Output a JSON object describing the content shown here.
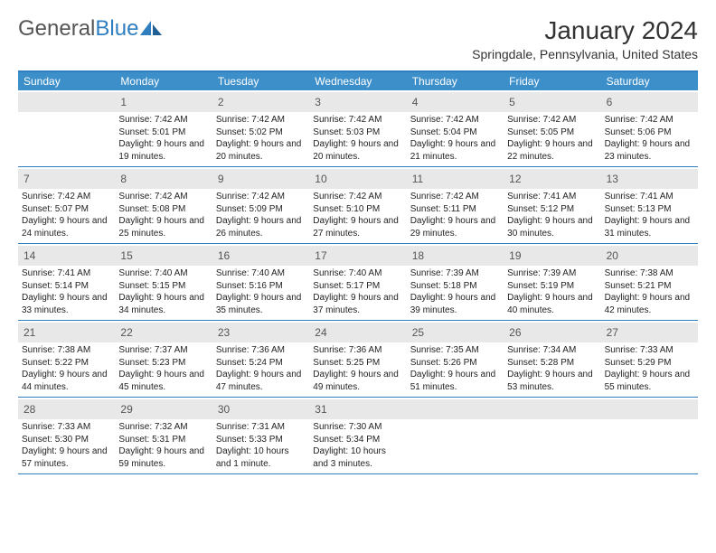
{
  "brand": {
    "word1": "General",
    "word2": "Blue"
  },
  "title": "January 2024",
  "location": "Springdale, Pennsylvania, United States",
  "colors": {
    "header_bg": "#3d8fc9",
    "rule": "#2f7ec0",
    "daynum_bg": "#e8e8e8",
    "text": "#222222",
    "logo_dark": "#555555",
    "logo_blue": "#2f7ec0",
    "page_bg": "#ffffff"
  },
  "typography": {
    "title_fontsize_pt": 21,
    "location_fontsize_pt": 11,
    "dayheader_fontsize_pt": 9,
    "daynum_fontsize_pt": 9,
    "body_fontsize_pt": 7.5
  },
  "day_names": [
    "Sunday",
    "Monday",
    "Tuesday",
    "Wednesday",
    "Thursday",
    "Friday",
    "Saturday"
  ],
  "weeks": [
    [
      null,
      {
        "n": "1",
        "sr": "Sunrise: 7:42 AM",
        "ss": "Sunset: 5:01 PM",
        "dl": "Daylight: 9 hours and 19 minutes."
      },
      {
        "n": "2",
        "sr": "Sunrise: 7:42 AM",
        "ss": "Sunset: 5:02 PM",
        "dl": "Daylight: 9 hours and 20 minutes."
      },
      {
        "n": "3",
        "sr": "Sunrise: 7:42 AM",
        "ss": "Sunset: 5:03 PM",
        "dl": "Daylight: 9 hours and 20 minutes."
      },
      {
        "n": "4",
        "sr": "Sunrise: 7:42 AM",
        "ss": "Sunset: 5:04 PM",
        "dl": "Daylight: 9 hours and 21 minutes."
      },
      {
        "n": "5",
        "sr": "Sunrise: 7:42 AM",
        "ss": "Sunset: 5:05 PM",
        "dl": "Daylight: 9 hours and 22 minutes."
      },
      {
        "n": "6",
        "sr": "Sunrise: 7:42 AM",
        "ss": "Sunset: 5:06 PM",
        "dl": "Daylight: 9 hours and 23 minutes."
      }
    ],
    [
      {
        "n": "7",
        "sr": "Sunrise: 7:42 AM",
        "ss": "Sunset: 5:07 PM",
        "dl": "Daylight: 9 hours and 24 minutes."
      },
      {
        "n": "8",
        "sr": "Sunrise: 7:42 AM",
        "ss": "Sunset: 5:08 PM",
        "dl": "Daylight: 9 hours and 25 minutes."
      },
      {
        "n": "9",
        "sr": "Sunrise: 7:42 AM",
        "ss": "Sunset: 5:09 PM",
        "dl": "Daylight: 9 hours and 26 minutes."
      },
      {
        "n": "10",
        "sr": "Sunrise: 7:42 AM",
        "ss": "Sunset: 5:10 PM",
        "dl": "Daylight: 9 hours and 27 minutes."
      },
      {
        "n": "11",
        "sr": "Sunrise: 7:42 AM",
        "ss": "Sunset: 5:11 PM",
        "dl": "Daylight: 9 hours and 29 minutes."
      },
      {
        "n": "12",
        "sr": "Sunrise: 7:41 AM",
        "ss": "Sunset: 5:12 PM",
        "dl": "Daylight: 9 hours and 30 minutes."
      },
      {
        "n": "13",
        "sr": "Sunrise: 7:41 AM",
        "ss": "Sunset: 5:13 PM",
        "dl": "Daylight: 9 hours and 31 minutes."
      }
    ],
    [
      {
        "n": "14",
        "sr": "Sunrise: 7:41 AM",
        "ss": "Sunset: 5:14 PM",
        "dl": "Daylight: 9 hours and 33 minutes."
      },
      {
        "n": "15",
        "sr": "Sunrise: 7:40 AM",
        "ss": "Sunset: 5:15 PM",
        "dl": "Daylight: 9 hours and 34 minutes."
      },
      {
        "n": "16",
        "sr": "Sunrise: 7:40 AM",
        "ss": "Sunset: 5:16 PM",
        "dl": "Daylight: 9 hours and 35 minutes."
      },
      {
        "n": "17",
        "sr": "Sunrise: 7:40 AM",
        "ss": "Sunset: 5:17 PM",
        "dl": "Daylight: 9 hours and 37 minutes."
      },
      {
        "n": "18",
        "sr": "Sunrise: 7:39 AM",
        "ss": "Sunset: 5:18 PM",
        "dl": "Daylight: 9 hours and 39 minutes."
      },
      {
        "n": "19",
        "sr": "Sunrise: 7:39 AM",
        "ss": "Sunset: 5:19 PM",
        "dl": "Daylight: 9 hours and 40 minutes."
      },
      {
        "n": "20",
        "sr": "Sunrise: 7:38 AM",
        "ss": "Sunset: 5:21 PM",
        "dl": "Daylight: 9 hours and 42 minutes."
      }
    ],
    [
      {
        "n": "21",
        "sr": "Sunrise: 7:38 AM",
        "ss": "Sunset: 5:22 PM",
        "dl": "Daylight: 9 hours and 44 minutes."
      },
      {
        "n": "22",
        "sr": "Sunrise: 7:37 AM",
        "ss": "Sunset: 5:23 PM",
        "dl": "Daylight: 9 hours and 45 minutes."
      },
      {
        "n": "23",
        "sr": "Sunrise: 7:36 AM",
        "ss": "Sunset: 5:24 PM",
        "dl": "Daylight: 9 hours and 47 minutes."
      },
      {
        "n": "24",
        "sr": "Sunrise: 7:36 AM",
        "ss": "Sunset: 5:25 PM",
        "dl": "Daylight: 9 hours and 49 minutes."
      },
      {
        "n": "25",
        "sr": "Sunrise: 7:35 AM",
        "ss": "Sunset: 5:26 PM",
        "dl": "Daylight: 9 hours and 51 minutes."
      },
      {
        "n": "26",
        "sr": "Sunrise: 7:34 AM",
        "ss": "Sunset: 5:28 PM",
        "dl": "Daylight: 9 hours and 53 minutes."
      },
      {
        "n": "27",
        "sr": "Sunrise: 7:33 AM",
        "ss": "Sunset: 5:29 PM",
        "dl": "Daylight: 9 hours and 55 minutes."
      }
    ],
    [
      {
        "n": "28",
        "sr": "Sunrise: 7:33 AM",
        "ss": "Sunset: 5:30 PM",
        "dl": "Daylight: 9 hours and 57 minutes."
      },
      {
        "n": "29",
        "sr": "Sunrise: 7:32 AM",
        "ss": "Sunset: 5:31 PM",
        "dl": "Daylight: 9 hours and 59 minutes."
      },
      {
        "n": "30",
        "sr": "Sunrise: 7:31 AM",
        "ss": "Sunset: 5:33 PM",
        "dl": "Daylight: 10 hours and 1 minute."
      },
      {
        "n": "31",
        "sr": "Sunrise: 7:30 AM",
        "ss": "Sunset: 5:34 PM",
        "dl": "Daylight: 10 hours and 3 minutes."
      },
      null,
      null,
      null
    ]
  ]
}
